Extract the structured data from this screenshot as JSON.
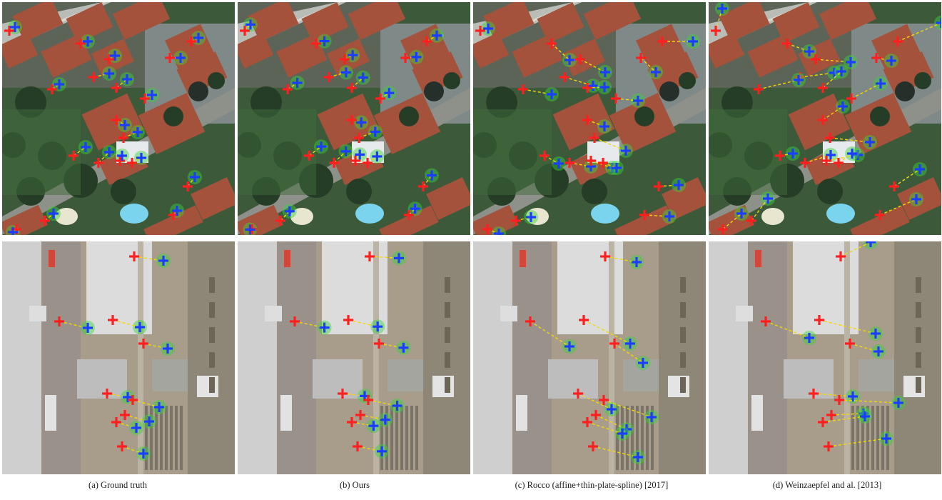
{
  "captions": [
    "(a) Ground truth",
    "(b) Ours",
    "(c) Rocco (affine+thin-plate-spline) [2017]",
    "(d) Weinzaepfel and al. [2013]"
  ],
  "colors": {
    "source_marker": "#ff1f1f",
    "target_marker": "#1a3dff",
    "match_line": "#f5d800",
    "match_halo": "#37d43a"
  }
}
